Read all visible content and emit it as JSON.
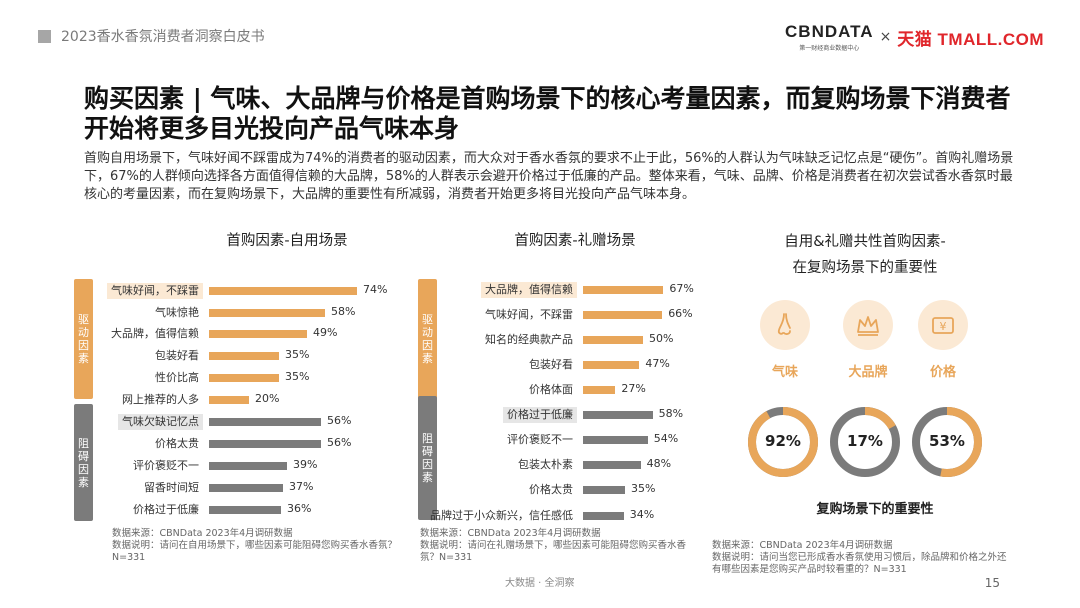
{
  "report": {
    "title": "2023香水香氛消费者洞察白皮书"
  },
  "logos": {
    "cbn_name": "CBNDATA",
    "cbn_sub": "第一财经商业数据中心",
    "times": "×",
    "tmall": "天猫 TMALL.COM"
  },
  "headline": "购买因素 | 气味、大品牌与价格是首购场景下的核心考量因素，而复购场景下消费者开始将更多目光投向产品气味本身",
  "summary": "首购自用场景下，气味好闻不踩雷成为74%的消费者的驱动因素，而大众对于香水香氛的要求不止于此，56%的人群认为气味缺乏记忆点是“硬伤”。首购礼赠场景下，67%的人群倾向选择各方面值得信赖的大品牌，58%的人群表示会避开价格过于低廉的产品。整体来看，气味、品牌、价格是消费者在初次尝试香水香氛时最核心的考量因素，而在复购场景下，大品牌的重要性有所减弱，消费者开始更多将目光投向产品气味本身。",
  "categories": {
    "drive": "驱动因素",
    "block": "阻碍因素"
  },
  "chart_data": [
    {
      "type": "bar",
      "title": "首购因素-自用场景",
      "groups": [
        "驱动因素",
        "阻碍因素"
      ],
      "categories": [
        "气味好闻，不踩雷",
        "气味惊艳",
        "大品牌，值得信赖",
        "包装好看",
        "性价比高",
        "网上推荐的人多",
        "气味欠缺记忆点",
        "价格太贵",
        "评价褒贬不一",
        "留香时间短",
        "价格过于低廉"
      ],
      "group_of_category": [
        "驱动因素",
        "驱动因素",
        "驱动因素",
        "驱动因素",
        "驱动因素",
        "驱动因素",
        "阻碍因素",
        "阻碍因素",
        "阻碍因素",
        "阻碍因素",
        "阻碍因素"
      ],
      "values": [
        74,
        58,
        49,
        35,
        35,
        20,
        56,
        56,
        39,
        37,
        36
      ],
      "labels": [
        "74%",
        "58%",
        "49%",
        "35%",
        "35%",
        "20%",
        "56%",
        "56%",
        "39%",
        "37%",
        "36%"
      ],
      "highlighted": [
        "气味好闻，不踩雷",
        "气味欠缺记忆点"
      ],
      "unit": "%",
      "xlim": [
        0,
        100
      ]
    },
    {
      "type": "bar",
      "title": "首购因素-礼赠场景",
      "groups": [
        "驱动因素",
        "阻碍因素"
      ],
      "categories": [
        "大品牌，值得信赖",
        "气味好闻，不踩雷",
        "知名的经典款产品",
        "包装好看",
        "价格体面",
        "价格过于低廉",
        "评价褒贬不一",
        "包装太朴素",
        "价格太贵",
        "品牌过于小众新兴，信任感低"
      ],
      "group_of_category": [
        "驱动因素",
        "驱动因素",
        "驱动因素",
        "驱动因素",
        "驱动因素",
        "阻碍因素",
        "阻碍因素",
        "阻碍因素",
        "阻碍因素",
        "阻碍因素"
      ],
      "values": [
        67,
        66,
        50,
        47,
        27,
        58,
        54,
        48,
        35,
        34
      ],
      "labels": [
        "67%",
        "66%",
        "50%",
        "47%",
        "27%",
        "58%",
        "54%",
        "48%",
        "35%",
        "34%"
      ],
      "highlighted": [
        "大品牌，值得信赖",
        "价格过于低廉"
      ],
      "unit": "%",
      "xlim": [
        0,
        100
      ]
    },
    {
      "type": "pie",
      "title": "自用&礼赠共性首购因素-在复购场景下的重要性",
      "caption": "复购场景下的重要性",
      "categories": [
        "气味",
        "大品牌",
        "价格"
      ],
      "values": [
        92,
        17,
        53
      ],
      "labels": [
        "92%",
        "17%",
        "53%"
      ],
      "unit": "%"
    }
  ],
  "panel3": {
    "title_line1": "自用&礼赠共性首购因素-",
    "title_line2": "在复购场景下的重要性"
  },
  "footnotes": {
    "f1_src": "数据来源：CBNData 2023年4月调研数据",
    "f1_note": "数据说明：请问在自用场景下，哪些因素可能阻碍您购买香水香氛？N=331",
    "f2_src": "数据来源：CBNData 2023年4月调研数据",
    "f2_note": "数据说明：请问在礼赠场景下，哪些因素可能阻碍您购买香水香氛？N=331",
    "f3_src": "数据来源：CBNData 2023年4月调研数据",
    "f3_note": "数据说明：请问当您已形成香水香氛使用习惯后，除品牌和价格之外还有哪些因素是您购买产品时较看重的？N=331"
  },
  "footer": {
    "center": "大数据 · 全洞察",
    "page": "15"
  },
  "colors": {
    "orange": "#e8a65a",
    "gray": "#7b7b7b",
    "highlight_orange": "#fbe9d4",
    "highlight_gray": "#e6e6e6"
  }
}
